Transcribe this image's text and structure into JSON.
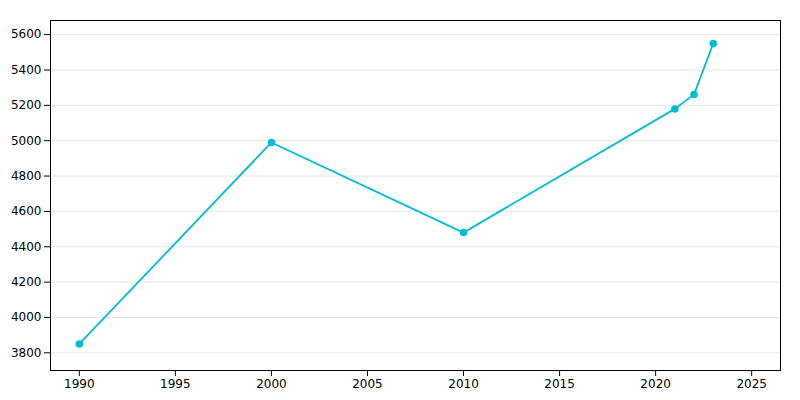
{
  "chart_data": {
    "type": "line",
    "x": [
      1990,
      2000,
      2010,
      2021,
      2022,
      2023
    ],
    "values": [
      3850,
      4990,
      4480,
      5180,
      5262,
      5550
    ],
    "color": "#00BCD4",
    "marker": "circle",
    "xlim": [
      1988.5,
      2026.5
    ],
    "ylim": [
      3700,
      5680
    ],
    "xticks": [
      1990,
      1995,
      2000,
      2005,
      2010,
      2015,
      2020,
      2025
    ],
    "yticks": [
      3800,
      4000,
      4200,
      4400,
      4600,
      4800,
      5000,
      5200,
      5400,
      5600
    ],
    "grid": "y"
  }
}
